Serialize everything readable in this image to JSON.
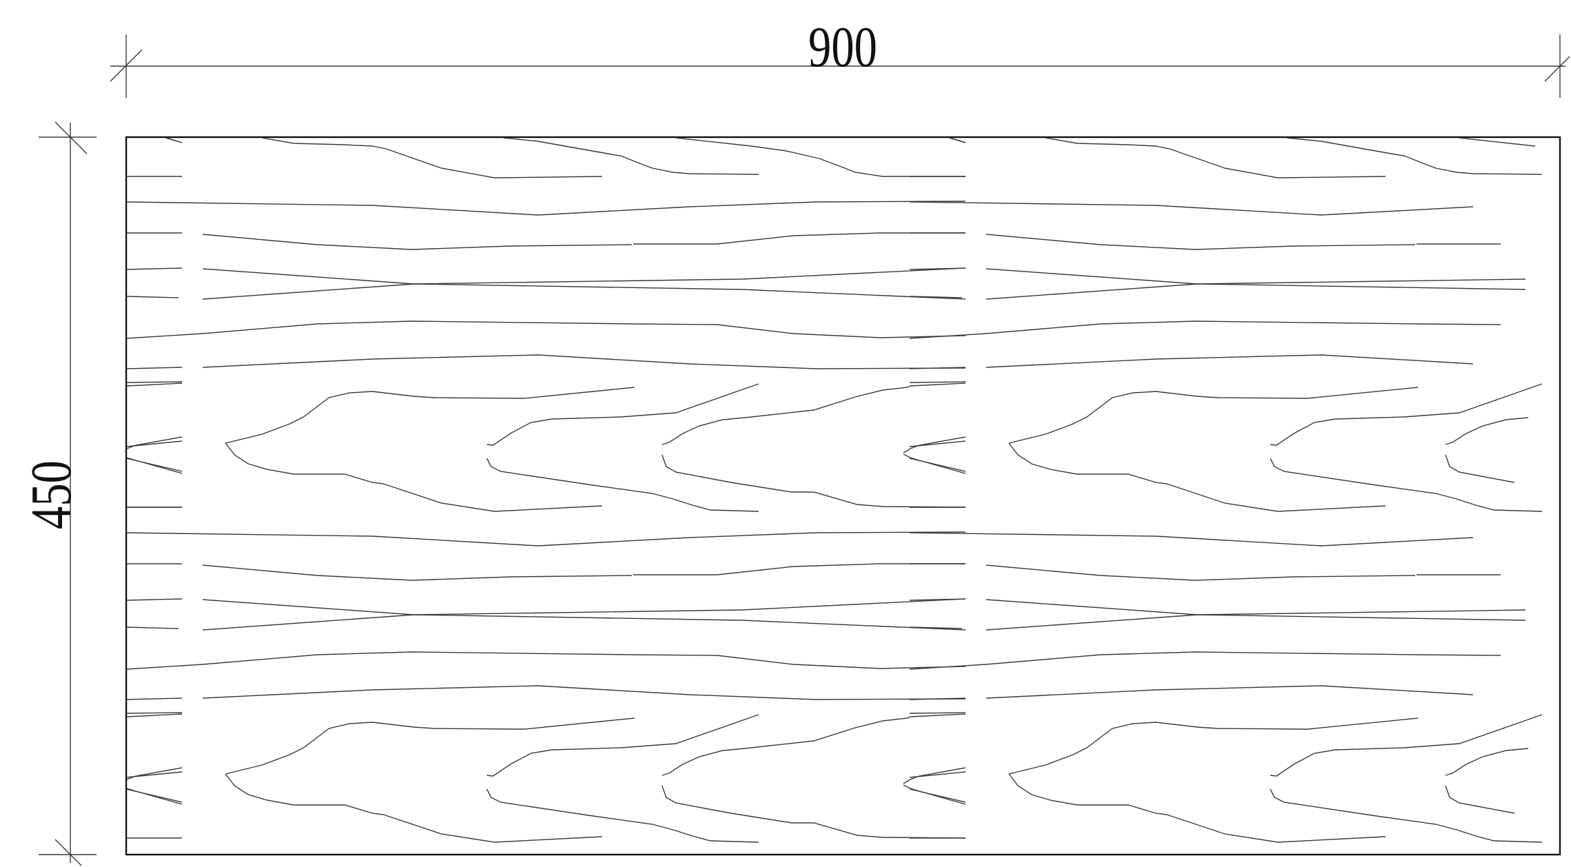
{
  "dimensions": {
    "width_label": "900",
    "height_label": "450"
  }
}
